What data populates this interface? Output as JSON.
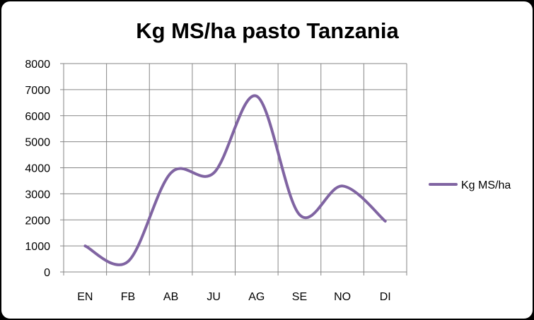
{
  "chart_data": {
    "type": "line",
    "title": "Kg MS/ha pasto Tanzania",
    "xlabel": "",
    "ylabel": "",
    "categories": [
      "EN",
      "FB",
      "AB",
      "JU",
      "AG",
      "SE",
      "NO",
      "DI"
    ],
    "series": [
      {
        "name": "Kg MS/ha",
        "values": [
          1000,
          400,
          3800,
          3800,
          6750,
          2200,
          3300,
          1950
        ],
        "color": "#8064a2",
        "smooth": true
      }
    ],
    "ylim": [
      0,
      8000
    ],
    "yticks": [
      0,
      1000,
      2000,
      3000,
      4000,
      5000,
      6000,
      7000,
      8000
    ],
    "grid": true,
    "legend_position": "right"
  }
}
